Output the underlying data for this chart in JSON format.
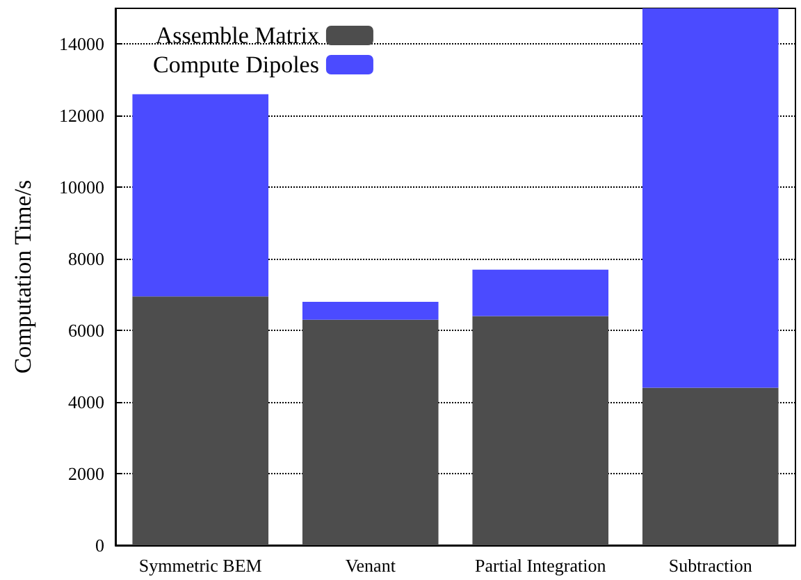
{
  "chart_data": {
    "type": "bar",
    "stacked": true,
    "ylabel": "Computation Time/s",
    "categories": [
      "Symmetric BEM",
      "Venant",
      "Partial Integration",
      "Subtraction"
    ],
    "series": [
      {
        "name": "Assemble Matrix",
        "color": "#4d4d4d",
        "values": [
          6950,
          6300,
          6400,
          4400
        ]
      },
      {
        "name": "Compute Dipoles",
        "color": "#4b4bff",
        "values": [
          5650,
          500,
          1300,
          10600
        ]
      }
    ],
    "ylim": [
      0,
      15000
    ],
    "yticks": [
      0,
      2000,
      4000,
      6000,
      8000,
      10000,
      12000,
      14000
    ],
    "grid": "y",
    "legend": "top left"
  }
}
